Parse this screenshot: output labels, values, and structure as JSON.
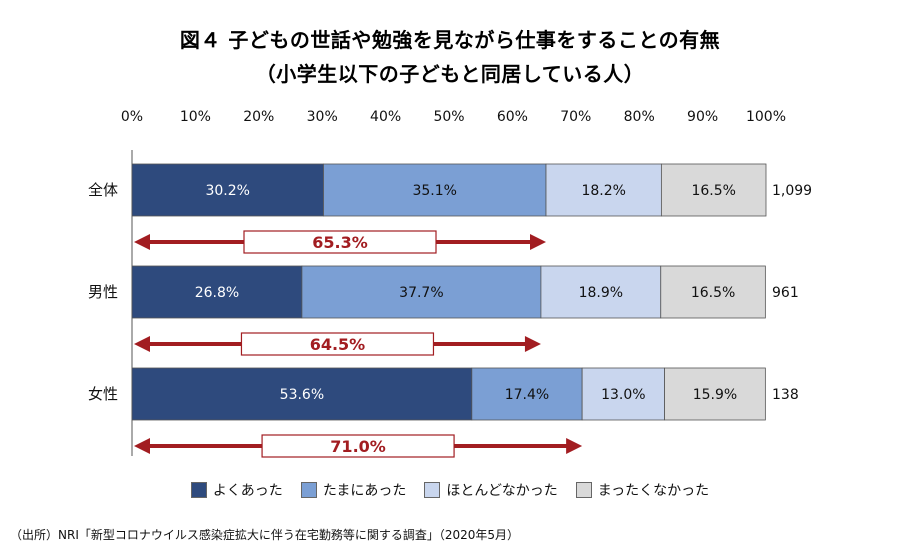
{
  "title": {
    "line1": "図４ 子どもの世話や勉強を見ながら仕事をすることの有無",
    "line2": "（小学生以下の子どもと同居している人）"
  },
  "source": "（出所）NRI「新型コロナウイルス感染症拡大に伴う在宅勤務等に関する調査」（2020年5月）",
  "colors": {
    "よくあった": "#2e4a7d",
    "たまにあった": "#7b9fd4",
    "ほとんどなかった": "#c9d6ee",
    "まったくなかった": "#d9d9d9",
    "arrow": "#a21d21",
    "axis": "#555555"
  },
  "chart_data": {
    "type": "bar",
    "orientation": "horizontal",
    "stacked": true,
    "xlim": [
      0,
      100
    ],
    "x_ticks": [
      "0%",
      "10%",
      "20%",
      "30%",
      "40%",
      "50%",
      "60%",
      "70%",
      "80%",
      "90%",
      "100%"
    ],
    "categories": [
      "全体",
      "男性",
      "女性"
    ],
    "series": [
      {
        "name": "よくあった",
        "values": [
          30.2,
          26.8,
          53.6
        ]
      },
      {
        "name": "たまにあった",
        "values": [
          35.1,
          37.7,
          17.4
        ]
      },
      {
        "name": "ほとんどなかった",
        "values": [
          18.2,
          18.9,
          13.0
        ]
      },
      {
        "name": "まったくなかった",
        "values": [
          16.5,
          16.5,
          15.9
        ]
      }
    ],
    "sample_sizes": [
      "1,099",
      "961",
      "138"
    ],
    "summary_arrows": [
      {
        "label": "65.3%",
        "value": 65.3
      },
      {
        "label": "64.5%",
        "value": 64.5
      },
      {
        "label": "71.0%",
        "value": 71.0
      }
    ],
    "legend_position": "bottom"
  }
}
